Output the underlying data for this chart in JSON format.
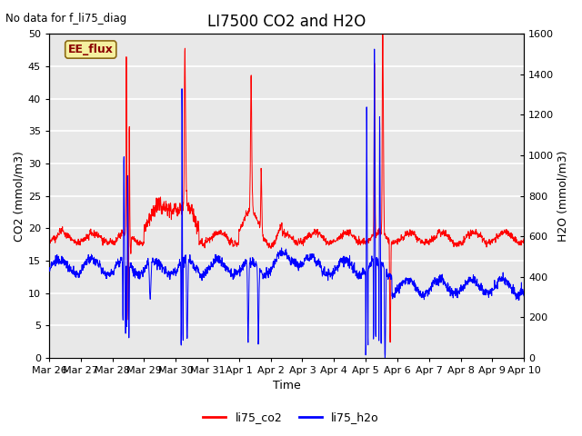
{
  "title": "LI7500 CO2 and H2O",
  "top_left_text": "No data for f_li75_diag",
  "xlabel": "Time",
  "ylabel_left": "CO2 (mmol/m3)",
  "ylabel_right": "H2O (mmol/m3)",
  "legend_labels": [
    "li75_co2",
    "li75_h2o"
  ],
  "co2_color": "red",
  "h2o_color": "blue",
  "box_label": "EE_flux",
  "box_facecolor": "#f5f0a0",
  "box_edgecolor": "#8B6914",
  "ylim_left": [
    0,
    50
  ],
  "ylim_right": [
    0,
    1600
  ],
  "background_color": "#e8e8e8",
  "grid_color": "white",
  "title_fontsize": 12,
  "label_fontsize": 9,
  "tick_fontsize": 8,
  "n_points": 2016
}
